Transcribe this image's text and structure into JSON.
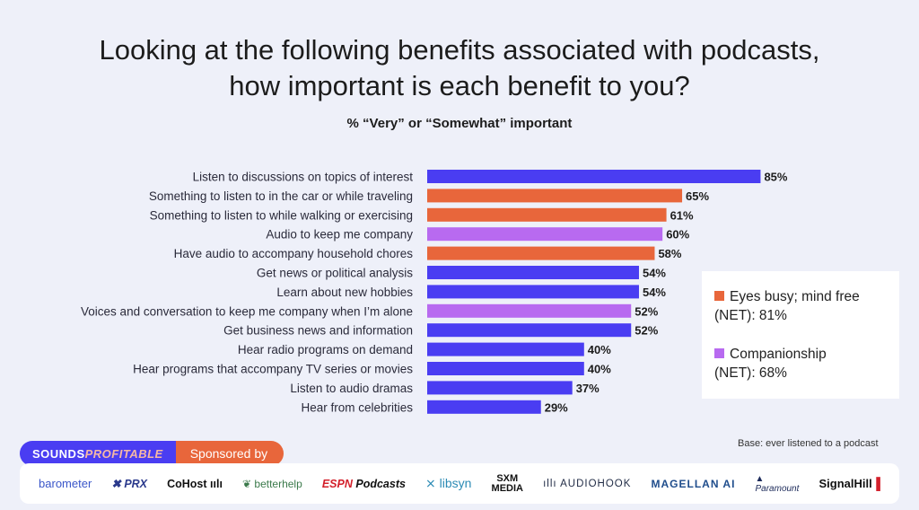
{
  "title_line1": "Looking at the following benefits associated with podcasts,",
  "title_line2": "how important is each benefit to you?",
  "subtitle": "% “Very” or “Somewhat” important",
  "colors": {
    "blue": "#4a3df2",
    "orange": "#e8663b",
    "purple": "#b86af0",
    "background": "#eef0f9"
  },
  "chart_data": {
    "type": "bar",
    "orientation": "horizontal",
    "categories": [
      "Listen to discussions on topics of interest",
      "Something to listen to in the car or while traveling",
      "Something to listen to while walking or exercising",
      "Audio to keep me company",
      "Have audio to accompany household chores",
      "Get news or political analysis",
      "Learn about new hobbies",
      "Voices and conversation to keep me company when I’m alone",
      "Get business news and information",
      "Hear radio programs on demand",
      "Hear programs that accompany TV series or movies",
      "Listen to audio dramas",
      "Hear from celebrities"
    ],
    "values": [
      85,
      65,
      61,
      60,
      58,
      54,
      54,
      52,
      52,
      40,
      40,
      37,
      29
    ],
    "value_labels": [
      "85%",
      "65%",
      "61%",
      "60%",
      "58%",
      "54%",
      "54%",
      "52%",
      "52%",
      "40%",
      "40%",
      "37%",
      "29%"
    ],
    "bar_groups": [
      "other",
      "eyes_busy",
      "eyes_busy",
      "companionship",
      "eyes_busy",
      "other",
      "other",
      "companionship",
      "other",
      "other",
      "other",
      "other",
      "other"
    ],
    "title": "Looking at the following benefits associated with podcasts, how important is each benefit to you?",
    "subtitle": "% “Very” or “Somewhat” important",
    "xlim": [
      0,
      100
    ],
    "grid": false,
    "legend_placement": "right",
    "legend": [
      {
        "group": "eyes_busy",
        "line1": "Eyes busy; mind free",
        "line2": "(NET): 81%"
      },
      {
        "group": "companionship",
        "line1": "Companionship",
        "line2": "(NET): 68%"
      }
    ]
  },
  "base_note": "Base: ever listened to a podcast",
  "brand": {
    "sounds": "SOUNDS",
    "profitable": "PROFITABLE",
    "sponsored_by": "Sponsored by"
  },
  "sponsors": [
    "barometer",
    "PRX",
    "CoHost",
    "betterhelp",
    "ESPN",
    "Podcasts",
    "libsyn",
    "SXM",
    "MEDIA",
    "AUDIOHOOK",
    "MAGELLAN AI",
    "Paramount",
    "SignalHill"
  ]
}
